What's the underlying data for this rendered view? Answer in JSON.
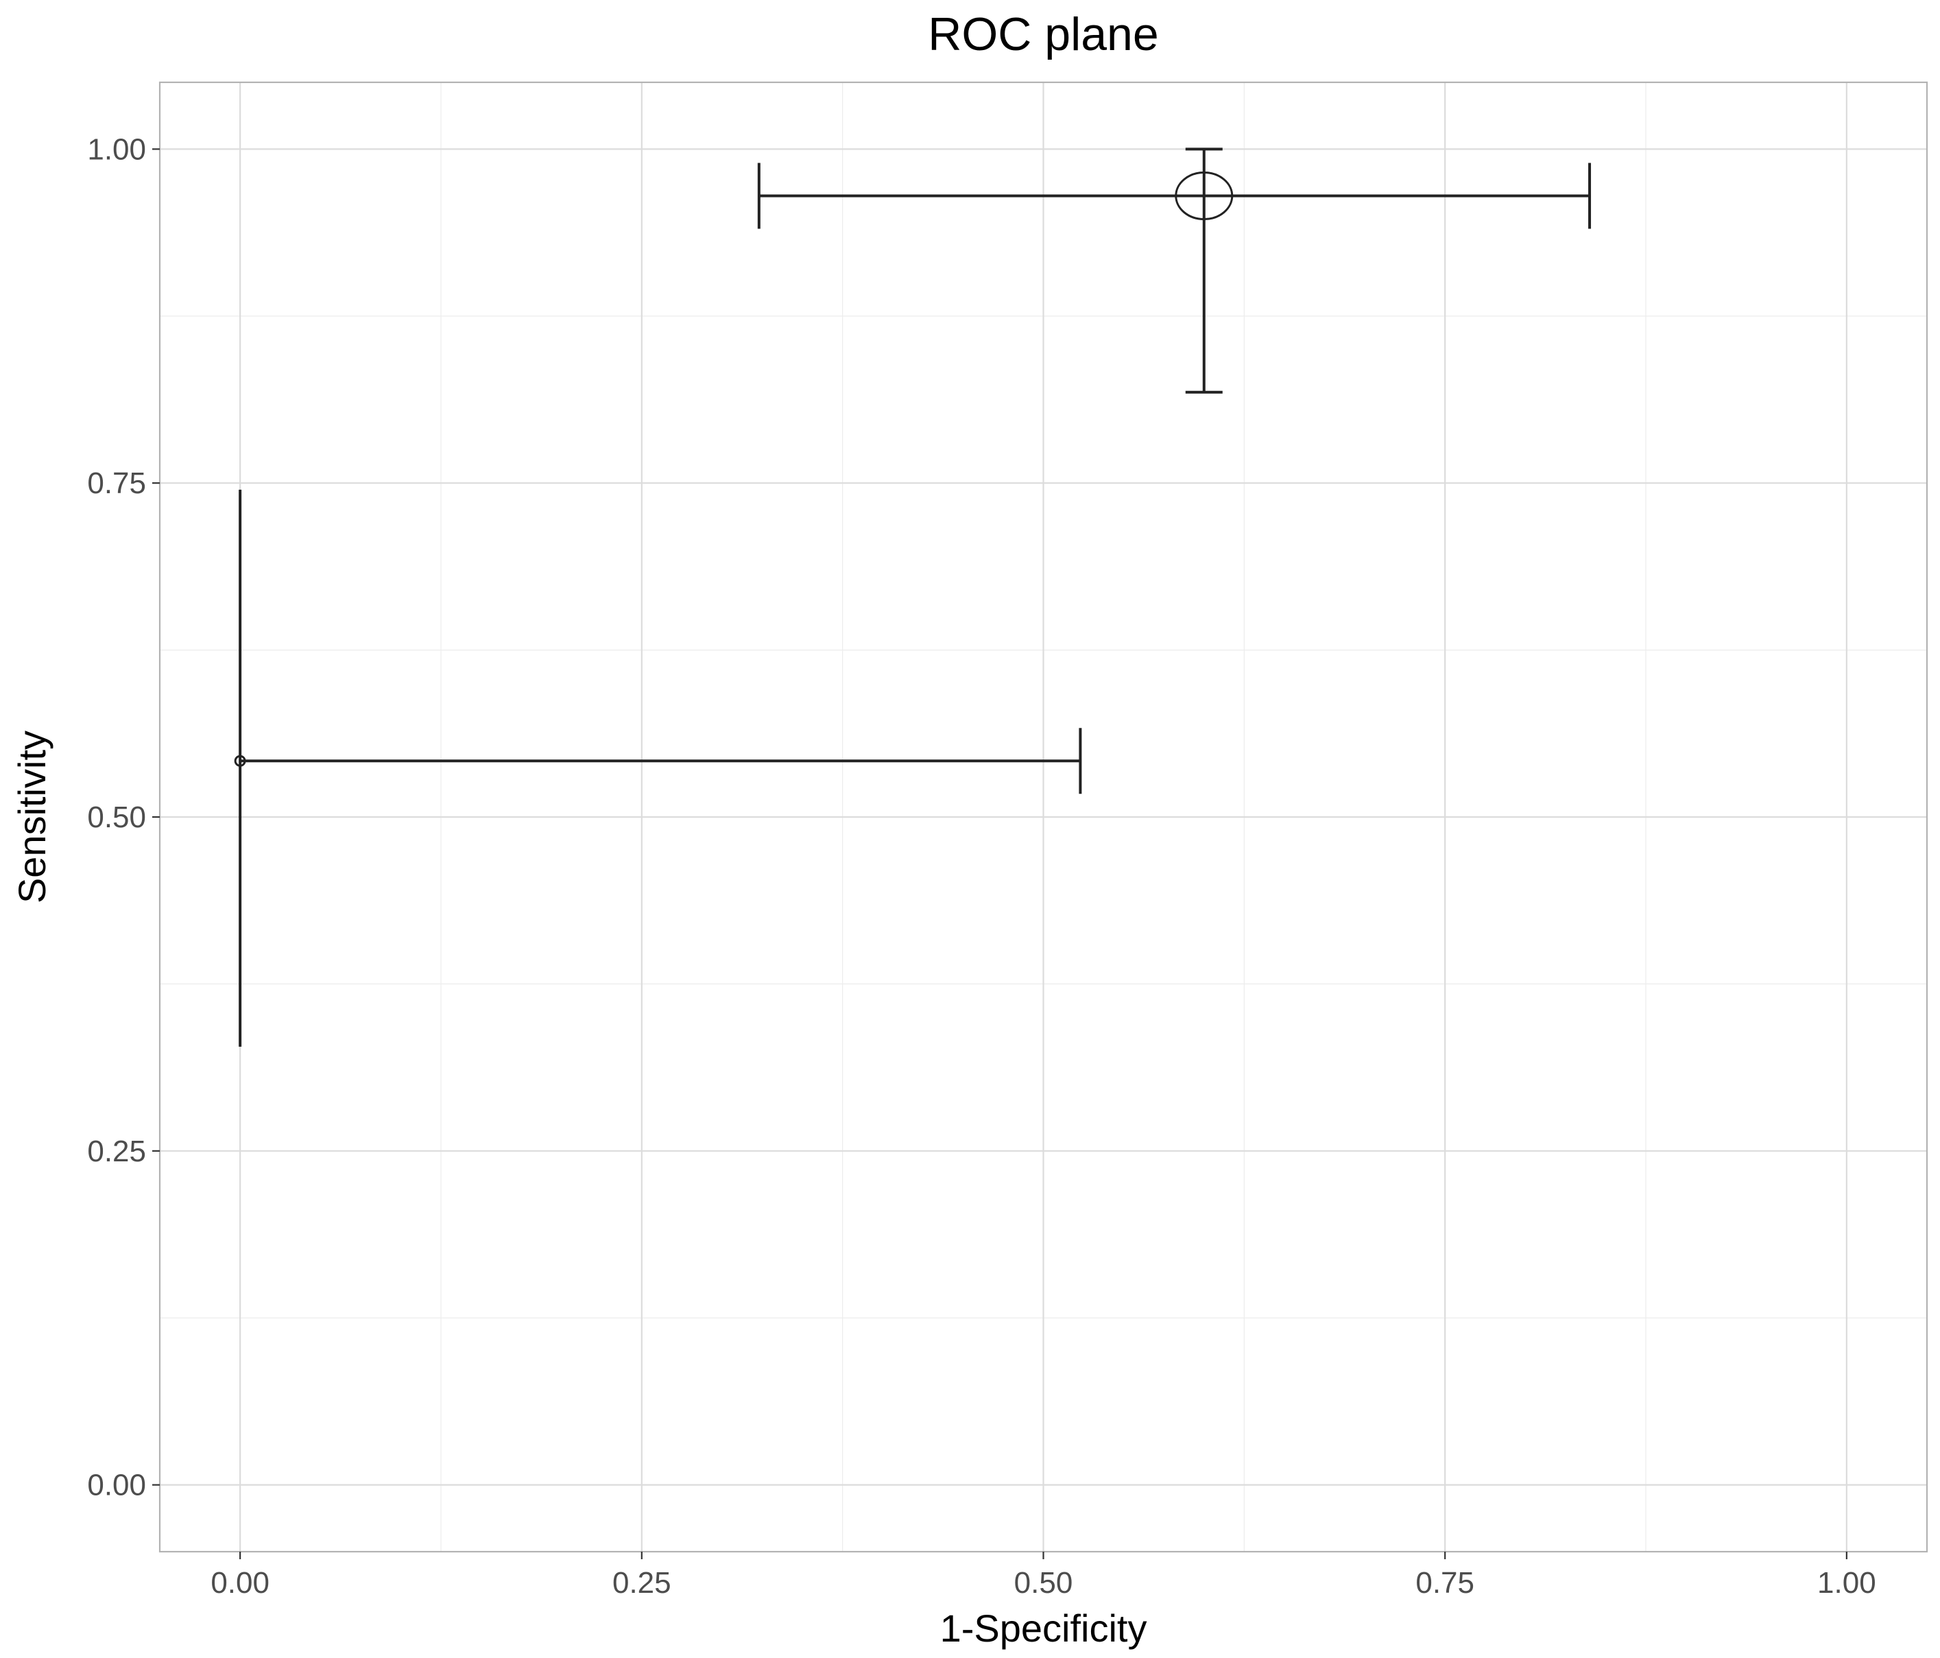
{
  "chart_data": {
    "type": "scatter",
    "title": "ROC plane",
    "xlabel": "1-Specificity",
    "ylabel": "Sensitivity",
    "xlim": [
      -0.05,
      1.05
    ],
    "ylim": [
      -0.05,
      1.05
    ],
    "x_ticks": [
      0,
      0.25,
      0.5,
      0.75,
      1
    ],
    "x_tick_labels": [
      "0.00",
      "0.25",
      "0.50",
      "0.75",
      "1.00"
    ],
    "y_ticks": [
      0,
      0.25,
      0.5,
      0.75,
      1
    ],
    "y_tick_labels": [
      "0.00",
      "0.25",
      "0.50",
      "0.75",
      "1.00"
    ],
    "grid": true,
    "legend": "none",
    "points": [
      {
        "x": 0.6,
        "y": 0.965,
        "x_low": 0.323,
        "x_high": 0.84,
        "y_low": 0.818,
        "y_high": 1.0,
        "marker_size": "large"
      },
      {
        "x": 0.0,
        "y": 0.542,
        "x_low": 0.0,
        "x_high": 0.523,
        "y_low": 0.328,
        "y_high": 0.745,
        "marker_size": "small"
      }
    ]
  }
}
